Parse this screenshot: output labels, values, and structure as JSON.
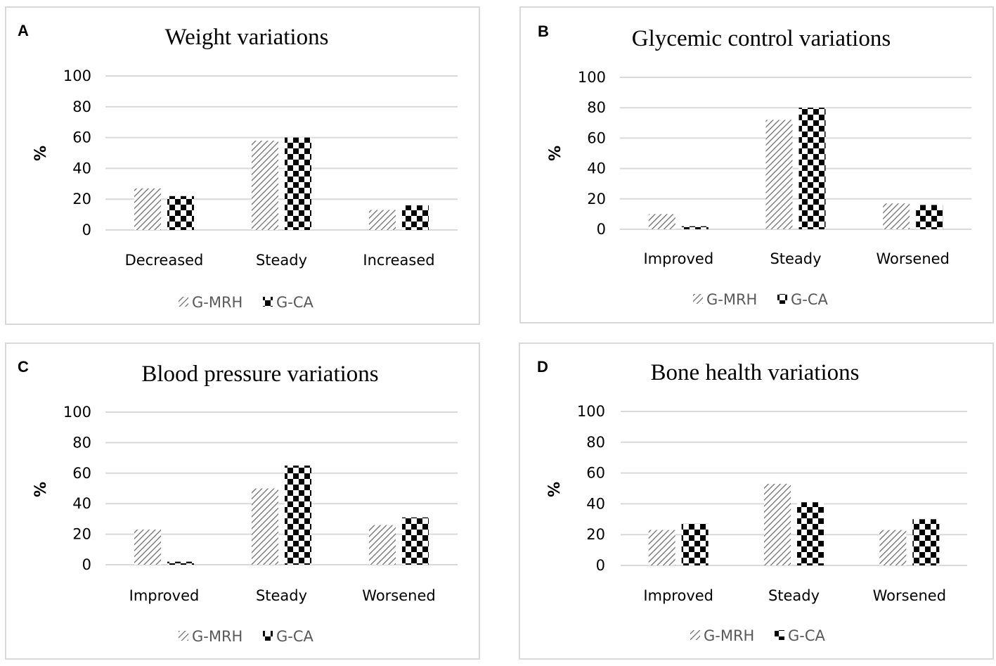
{
  "chart_data": [
    {
      "panel": "A",
      "type": "bar",
      "title": "Weight variations",
      "ylabel": "%",
      "xlabel": "",
      "ylim": [
        0,
        100
      ],
      "yticks": [
        "0",
        "20",
        "40",
        "60",
        "80",
        "100"
      ],
      "categories": [
        "Decreased",
        "Steady",
        "Increased"
      ],
      "series": [
        {
          "name": "G-MRH",
          "values": [
            27,
            58,
            13
          ]
        },
        {
          "name": "G-CA",
          "values": [
            22,
            60,
            16
          ]
        }
      ],
      "legend": "bottom",
      "grid": true
    },
    {
      "panel": "B",
      "type": "bar",
      "title": "Glycemic control variations",
      "ylabel": "%",
      "xlabel": "",
      "ylim": [
        0,
        100
      ],
      "yticks": [
        "0",
        "20",
        "40",
        "60",
        "80",
        "100"
      ],
      "categories": [
        "Improved",
        "Steady",
        "Worsened"
      ],
      "series": [
        {
          "name": "G-MRH",
          "values": [
            10,
            72,
            17
          ]
        },
        {
          "name": "G-CA",
          "values": [
            2,
            80,
            16
          ]
        }
      ],
      "legend": "bottom",
      "grid": true
    },
    {
      "panel": "C",
      "type": "bar",
      "title": "Blood pressure variations",
      "ylabel": "%",
      "xlabel": "",
      "ylim": [
        0,
        100
      ],
      "yticks": [
        "0",
        "20",
        "40",
        "60",
        "80",
        "100"
      ],
      "categories": [
        "Improved",
        "Steady",
        "Worsened"
      ],
      "series": [
        {
          "name": "G-MRH",
          "values": [
            23,
            50,
            26
          ]
        },
        {
          "name": "G-CA",
          "values": [
            2,
            65,
            31
          ]
        }
      ],
      "legend": "bottom",
      "grid": true
    },
    {
      "panel": "D",
      "type": "bar",
      "title": "Bone health variations",
      "ylabel": "%",
      "xlabel": "",
      "ylim": [
        0,
        100
      ],
      "yticks": [
        "0",
        "20",
        "40",
        "60",
        "80",
        "100"
      ],
      "categories": [
        "Improved",
        "Steady",
        "Worsened"
      ],
      "series": [
        {
          "name": "G-MRH",
          "values": [
            23,
            53,
            23
          ]
        },
        {
          "name": "G-CA",
          "values": [
            27,
            41,
            30
          ]
        }
      ],
      "legend": "bottom",
      "grid": true
    }
  ],
  "colors": {
    "grid": "#d9d9d9",
    "border": "#d9d9d9",
    "hatch": "#6e6e6e",
    "checker": "#000000",
    "legend_text": "#595959"
  }
}
